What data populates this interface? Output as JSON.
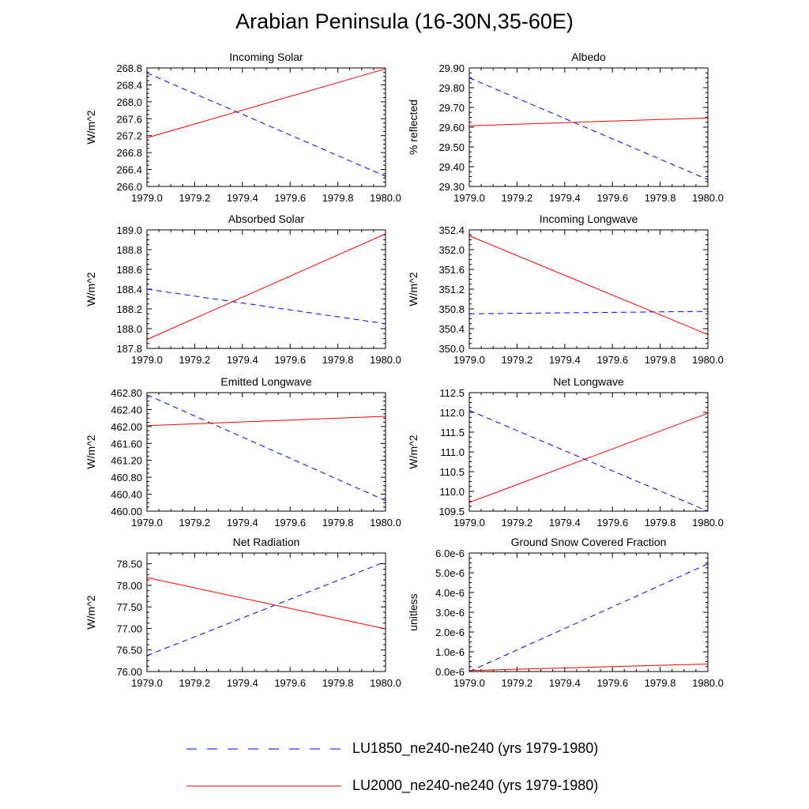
{
  "title": "Arabian Peninsula (16-30N,35-60E)",
  "legend": [
    {
      "label": "LU1850_ne240-ne240 (yrs 1979-1980)",
      "color": "#0000ff",
      "style": "dashed"
    },
    {
      "label": "LU2000_ne240-ne240 (yrs 1979-1980)",
      "color": "#ff0000",
      "style": "solid"
    }
  ],
  "chart_data": [
    {
      "type": "line",
      "title": "Incoming Solar",
      "xlabel": "",
      "ylabel": "W/m^2",
      "xlim": [
        1979.0,
        1980.0
      ],
      "ylim": [
        266.0,
        268.8
      ],
      "x_ticks": [
        "1979.0",
        "1979.2",
        "1979.4",
        "1979.6",
        "1979.8",
        "1980.0"
      ],
      "y_ticks": [
        "266.0",
        "266.4",
        "266.8",
        "267.2",
        "267.6",
        "268.0",
        "268.4",
        "268.8"
      ],
      "x": [
        1979.0,
        1980.0
      ],
      "series": [
        {
          "name": "LU1850_ne240-ne240 (yrs 1979-1980)",
          "values": [
            268.68,
            266.24
          ]
        },
        {
          "name": "LU2000_ne240-ne240 (yrs 1979-1980)",
          "values": [
            267.15,
            268.78
          ]
        }
      ]
    },
    {
      "type": "line",
      "title": "Albedo",
      "xlabel": "",
      "ylabel": "% reflected",
      "xlim": [
        1979.0,
        1980.0
      ],
      "ylim": [
        29.3,
        29.9
      ],
      "x_ticks": [
        "1979.0",
        "1979.2",
        "1979.4",
        "1979.6",
        "1979.8",
        "1980.0"
      ],
      "y_ticks": [
        "29.30",
        "29.40",
        "29.50",
        "29.60",
        "29.70",
        "29.80",
        "29.90"
      ],
      "x": [
        1979.0,
        1980.0
      ],
      "series": [
        {
          "name": "LU1850_ne240-ne240 (yrs 1979-1980)",
          "values": [
            29.85,
            29.335
          ]
        },
        {
          "name": "LU2000_ne240-ne240 (yrs 1979-1980)",
          "values": [
            29.607,
            29.647
          ]
        }
      ]
    },
    {
      "type": "line",
      "title": "Absorbed Solar",
      "xlabel": "",
      "ylabel": "W/m^2",
      "xlim": [
        1979.0,
        1980.0
      ],
      "ylim": [
        187.8,
        189.0
      ],
      "x_ticks": [
        "1979.0",
        "1979.2",
        "1979.4",
        "1979.6",
        "1979.8",
        "1980.0"
      ],
      "y_ticks": [
        "187.8",
        "188.0",
        "188.2",
        "188.4",
        "188.6",
        "188.8",
        "189.0"
      ],
      "x": [
        1979.0,
        1980.0
      ],
      "series": [
        {
          "name": "LU1850_ne240-ne240 (yrs 1979-1980)",
          "values": [
            188.4,
            188.05
          ]
        },
        {
          "name": "LU2000_ne240-ne240 (yrs 1979-1980)",
          "values": [
            187.89,
            188.96
          ]
        }
      ]
    },
    {
      "type": "line",
      "title": "Incoming Longwave",
      "xlabel": "",
      "ylabel": "W/m^2",
      "xlim": [
        1979.0,
        1980.0
      ],
      "ylim": [
        350.0,
        352.4
      ],
      "x_ticks": [
        "1979.0",
        "1979.2",
        "1979.4",
        "1979.6",
        "1979.8",
        "1980.0"
      ],
      "y_ticks": [
        "350.0",
        "350.4",
        "350.8",
        "351.2",
        "351.6",
        "352.0",
        "352.4"
      ],
      "x": [
        1979.0,
        1980.0
      ],
      "series": [
        {
          "name": "LU1850_ne240-ne240 (yrs 1979-1980)",
          "values": [
            350.7,
            350.75
          ]
        },
        {
          "name": "LU2000_ne240-ne240 (yrs 1979-1980)",
          "values": [
            352.28,
            350.28
          ]
        }
      ]
    },
    {
      "type": "line",
      "title": "Emitted Longwave",
      "xlabel": "",
      "ylabel": "W/m^2",
      "xlim": [
        1979.0,
        1980.0
      ],
      "ylim": [
        460.0,
        462.8
      ],
      "x_ticks": [
        "1979.0",
        "1979.2",
        "1979.4",
        "1979.6",
        "1979.8",
        "1980.0"
      ],
      "y_ticks": [
        "460.00",
        "460.40",
        "460.80",
        "461.20",
        "461.60",
        "462.00",
        "462.40",
        "462.80"
      ],
      "x": [
        1979.0,
        1980.0
      ],
      "series": [
        {
          "name": "LU1850_ne240-ne240 (yrs 1979-1980)",
          "values": [
            462.75,
            460.25
          ]
        },
        {
          "name": "LU2000_ne240-ne240 (yrs 1979-1980)",
          "values": [
            462.02,
            462.24
          ]
        }
      ]
    },
    {
      "type": "line",
      "title": "Net Longwave",
      "xlabel": "",
      "ylabel": "W/m^2",
      "xlim": [
        1979.0,
        1980.0
      ],
      "ylim": [
        109.5,
        112.5
      ],
      "x_ticks": [
        "1979.0",
        "1979.2",
        "1979.4",
        "1979.6",
        "1979.8",
        "1980.0"
      ],
      "y_ticks": [
        "109.5",
        "110.0",
        "110.5",
        "111.0",
        "111.5",
        "112.0",
        "112.5"
      ],
      "x": [
        1979.0,
        1980.0
      ],
      "series": [
        {
          "name": "LU1850_ne240-ne240 (yrs 1979-1980)",
          "values": [
            112.05,
            109.5
          ]
        },
        {
          "name": "LU2000_ne240-ne240 (yrs 1979-1980)",
          "values": [
            109.72,
            111.98
          ]
        }
      ]
    },
    {
      "type": "line",
      "title": "Net Radiation",
      "xlabel": "",
      "ylabel": "W/m^2",
      "xlim": [
        1979.0,
        1980.0
      ],
      "ylim": [
        76.0,
        78.75
      ],
      "x_ticks": [
        "1979.0",
        "1979.2",
        "1979.4",
        "1979.6",
        "1979.8",
        "1980.0"
      ],
      "y_ticks": [
        "76.00",
        "76.50",
        "77.00",
        "77.50",
        "78.00",
        "78.50"
      ],
      "x": [
        1979.0,
        1980.0
      ],
      "series": [
        {
          "name": "LU1850_ne240-ne240 (yrs 1979-1980)",
          "values": [
            76.37,
            78.55
          ]
        },
        {
          "name": "LU2000_ne240-ne240 (yrs 1979-1980)",
          "values": [
            78.18,
            76.99
          ]
        }
      ]
    },
    {
      "type": "line",
      "title": "Ground Snow Covered Fraction",
      "xlabel": "",
      "ylabel": "unitless",
      "xlim": [
        1979.0,
        1980.0
      ],
      "ylim": [
        0.0,
        6e-06
      ],
      "x_ticks": [
        "1979.0",
        "1979.2",
        "1979.4",
        "1979.6",
        "1979.8",
        "1980.0"
      ],
      "y_ticks": [
        "0.0e-6",
        "1.0e-6",
        "2.0e-6",
        "3.0e-6",
        "4.0e-6",
        "5.0e-6",
        "6.0e-6"
      ],
      "x": [
        1979.0,
        1980.0
      ],
      "series": [
        {
          "name": "LU1850_ne240-ne240 (yrs 1979-1980)",
          "values": [
            0.0,
            5.45e-06
          ]
        },
        {
          "name": "LU2000_ne240-ne240 (yrs 1979-1980)",
          "values": [
            5e-08,
            3.8e-07
          ]
        }
      ]
    }
  ]
}
